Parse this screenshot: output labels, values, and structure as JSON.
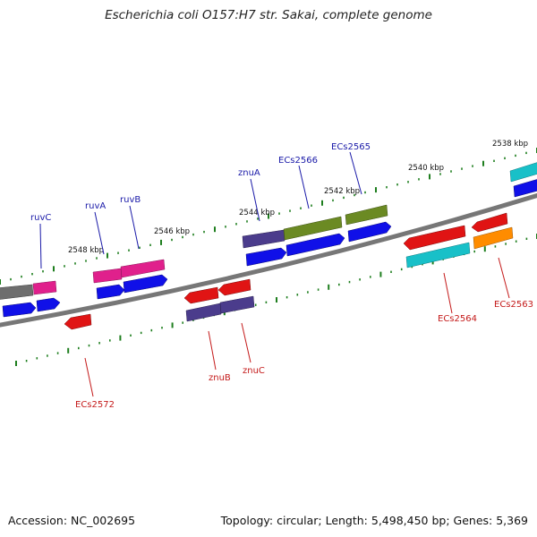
{
  "title": "Escherichia coli O157:H7 str. Sakai, complete genome",
  "footer": {
    "accession": "Accession: NC_002695",
    "stats": "Topology: circular; Length: 5,498,450 bp; Genes: 5,369"
  },
  "colors": {
    "backbone": "#7a7a7a",
    "tick": "#1e7e1e",
    "label_forward": "#1a1aa8",
    "label_reverse": "#c41a1a",
    "feature_blue": "#1010e8",
    "feature_red": "#e01414",
    "feature_magenta": "#e0208c",
    "feature_olive": "#6b8a23",
    "feature_indigo": "#4b3c8c",
    "feature_cyan": "#18c0c8",
    "feature_orange": "#ff8c00",
    "feature_gray": "#6e6e6e"
  },
  "scale": {
    "unit": "kbp",
    "labels": [
      "2538 kbp",
      "2540 kbp",
      "2542 kbp",
      "2544 kbp",
      "2546 kbp",
      "2548 kbp"
    ]
  },
  "genes_forward": [
    {
      "name": "ruvC",
      "color": "label_forward"
    },
    {
      "name": "ruvA",
      "color": "label_forward"
    },
    {
      "name": "ruvB",
      "color": "label_forward"
    },
    {
      "name": "znuA",
      "color": "label_forward"
    },
    {
      "name": "ECs2566",
      "color": "label_forward"
    },
    {
      "name": "ECs2565",
      "color": "label_forward"
    }
  ],
  "genes_reverse": [
    {
      "name": "ECs2572",
      "color": "label_reverse"
    },
    {
      "name": "znuB",
      "color": "label_reverse"
    },
    {
      "name": "znuC",
      "color": "label_reverse"
    },
    {
      "name": "ECs2564",
      "color": "label_reverse"
    },
    {
      "name": "ECs2563",
      "color": "label_reverse"
    }
  ]
}
